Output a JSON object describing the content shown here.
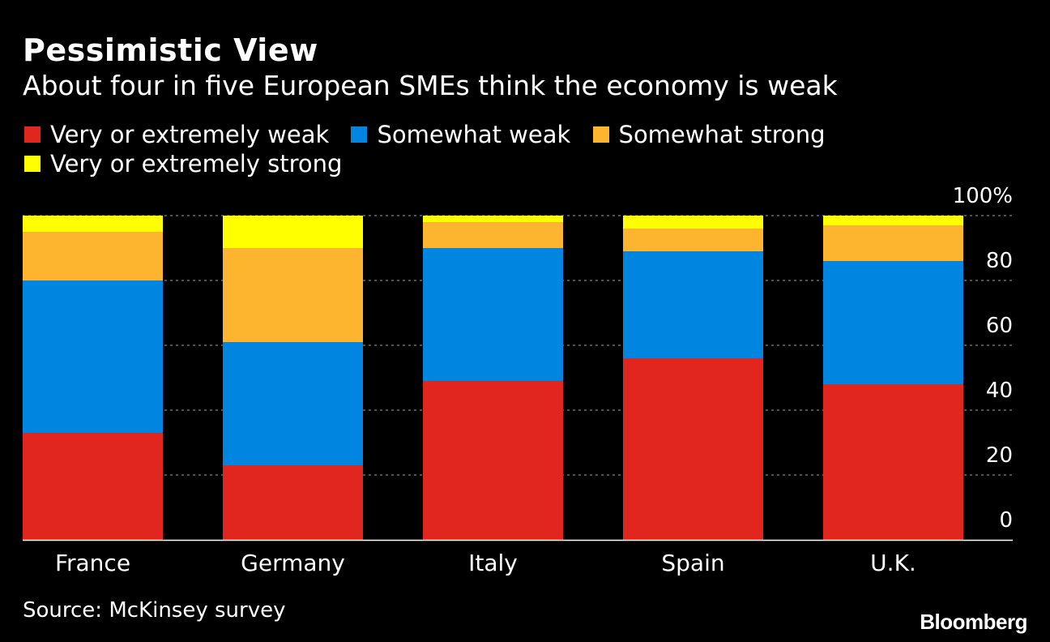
{
  "title": "Pessimistic View",
  "subtitle": "About four in five European SMEs think the economy is weak",
  "source": "Source: McKinsey survey",
  "brand": "Bloomberg",
  "chart_data": {
    "type": "bar",
    "stacked": true,
    "categories": [
      "France",
      "Germany",
      "Italy",
      "Spain",
      "U.K."
    ],
    "series": [
      {
        "name": "Very or extremely weak",
        "color": "#e0261f",
        "values": [
          33,
          23,
          49,
          56,
          48
        ]
      },
      {
        "name": "Somewhat weak",
        "color": "#0086e0",
        "values": [
          47,
          38,
          41,
          33,
          38
        ]
      },
      {
        "name": "Somewhat strong",
        "color": "#fdb52f",
        "values": [
          15,
          29,
          8,
          7,
          11
        ]
      },
      {
        "name": "Very or extremely strong",
        "color": "#ffff00",
        "values": [
          5,
          10,
          2,
          4,
          3
        ]
      }
    ],
    "y_ticks": [
      "0",
      "20",
      "40",
      "60",
      "80",
      "100%"
    ],
    "ylim": [
      0,
      100
    ],
    "grid": true,
    "legend_position": "top"
  }
}
